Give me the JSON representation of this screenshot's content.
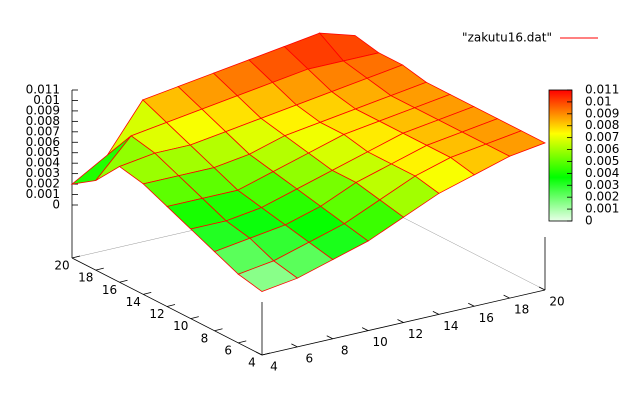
{
  "chart_data": {
    "type": "surface",
    "series": [
      {
        "name": "\"zakutu16.dat\"",
        "color": "#ff0000"
      }
    ],
    "x": [
      4,
      6,
      8,
      10,
      12,
      14,
      16,
      18,
      20
    ],
    "y": [
      4,
      6,
      8,
      10,
      12,
      14,
      16,
      18,
      20
    ],
    "z": [
      [
        0.001,
        0.0015,
        0.0025,
        0.0035,
        0.005,
        0.0065,
        0.0075,
        0.0085,
        0.009
      ],
      [
        0.0015,
        0.002,
        0.003,
        0.004,
        0.0055,
        0.007,
        0.008,
        0.0085,
        0.009
      ],
      [
        0.0025,
        0.003,
        0.0035,
        0.0045,
        0.006,
        0.007,
        0.008,
        0.0085,
        0.009
      ],
      [
        0.0035,
        0.0035,
        0.004,
        0.005,
        0.006,
        0.007,
        0.008,
        0.0085,
        0.009
      ],
      [
        0.0045,
        0.0045,
        0.0045,
        0.0055,
        0.0065,
        0.0075,
        0.008,
        0.0085,
        0.009
      ],
      [
        0.0055,
        0.0055,
        0.0055,
        0.006,
        0.007,
        0.0075,
        0.008,
        0.0085,
        0.009
      ],
      [
        0.006,
        0.0065,
        0.0065,
        0.007,
        0.0075,
        0.008,
        0.0085,
        0.009,
        0.0095
      ],
      [
        0.0035,
        0.007,
        0.0075,
        0.008,
        0.0085,
        0.009,
        0.0095,
        0.0095,
        0.0095
      ],
      [
        0.002,
        0.004,
        0.0085,
        0.009,
        0.0095,
        0.01,
        0.0105,
        0.011,
        0.01
      ]
    ],
    "xlim": [
      4,
      20
    ],
    "xticks": [
      4,
      6,
      8,
      10,
      12,
      14,
      16,
      18,
      20
    ],
    "ylim": [
      4,
      20
    ],
    "yticks": [
      4,
      6,
      8,
      10,
      12,
      14,
      16,
      18,
      20
    ],
    "zlim": [
      0,
      0.011
    ],
    "zticks": [
      0,
      0.001,
      0.002,
      0.003,
      0.004,
      0.005,
      0.006,
      0.007,
      0.008,
      0.009,
      0.01,
      0.011
    ],
    "cblim": [
      0,
      0.011
    ],
    "cbticks": [
      0,
      0.001,
      0.002,
      0.003,
      0.004,
      0.005,
      0.006,
      0.007,
      0.008,
      0.009,
      0.01,
      0.011
    ],
    "palette": [
      "#e8ffe8",
      "#00ff00",
      "#ffff00",
      "#ff0000"
    ],
    "legend": "top-right"
  }
}
